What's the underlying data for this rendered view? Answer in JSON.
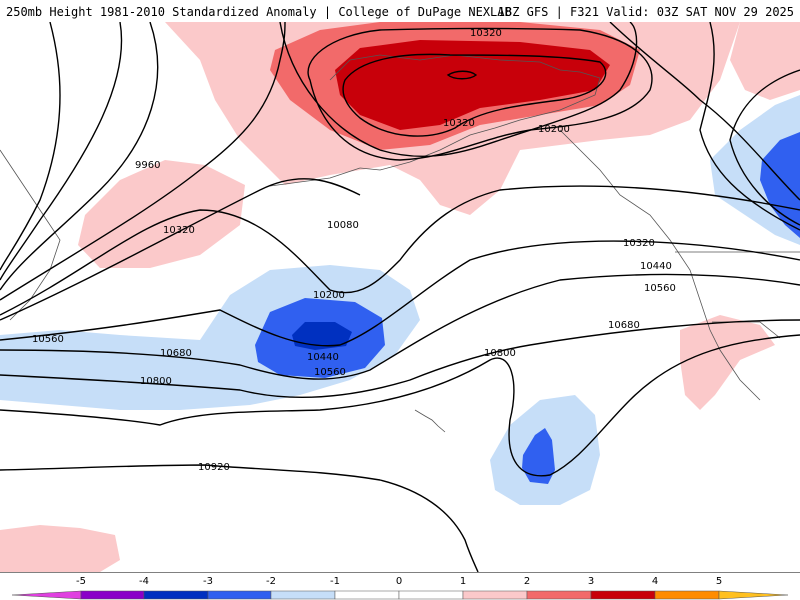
{
  "header": {
    "title": "250mb Height 1981-2010 Standardized Anomaly | College of DuPage NEXLAB",
    "run_info": "18Z GFS | F321 Valid: 03Z SAT NOV 29 2025"
  },
  "contour_labels": [
    "10320",
    "10320",
    "10200",
    "9960",
    "10080",
    "10320",
    "10200",
    "10440",
    "10560",
    "10560",
    "10680",
    "10800",
    "10800",
    "10920",
    "10320",
    "10440",
    "10560",
    "10680"
  ],
  "colorbar": {
    "ticks": [
      "-5",
      "-4",
      "-3",
      "-2",
      "-1",
      "0",
      "1",
      "2",
      "3",
      "4",
      "5"
    ],
    "colors": {
      "m5": "#e040e0",
      "m4": "#8a00c8",
      "m3": "#0030c0",
      "m2": "#3060f0",
      "m1": "#c6def8",
      "p1": "#fbc9ca",
      "p2": "#f26a6a",
      "p3": "#c8000a",
      "p4": "#ff8c00",
      "p5": "#ffc020"
    }
  }
}
